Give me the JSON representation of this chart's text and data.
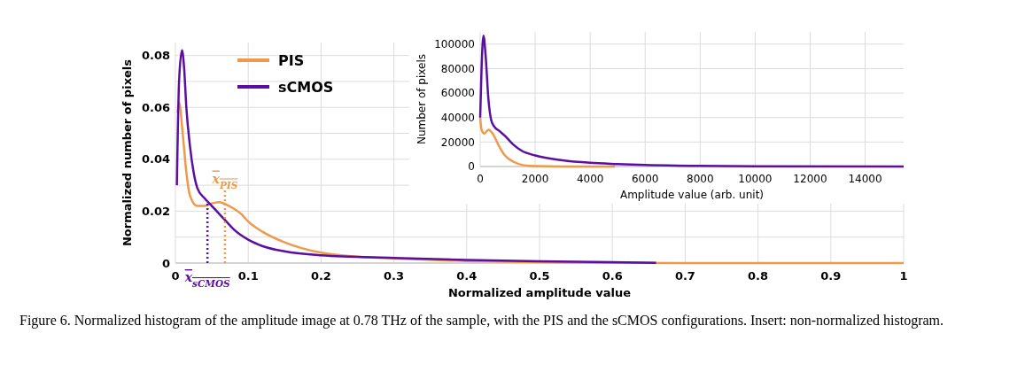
{
  "chart_data": [
    {
      "type": "line",
      "xlabel": "Normalized amplitude value",
      "ylabel": "Normalized number of pixels",
      "xlim": [
        0,
        1
      ],
      "ylim": [
        0,
        0.085
      ],
      "xticks": [
        0,
        0.1,
        0.2,
        0.3,
        0.4,
        0.5,
        0.6,
        0.7,
        0.8,
        0.9,
        1
      ],
      "yticks": [
        0,
        {
          "value": 0.01,
          "label": null
        },
        0.02,
        {
          "value": 0.03,
          "label": null
        },
        0.04,
        {
          "value": 0.05,
          "label": null
        },
        0.06,
        {
          "value": 0.07,
          "label": null
        },
        0.08
      ],
      "grid": true,
      "legend": "top left",
      "marker": "none",
      "line_style": "solid",
      "series": [
        {
          "name": "PIS",
          "color": "#f0994a",
          "x": [
            0.003,
            0.005,
            0.01,
            0.015,
            0.02,
            0.03,
            0.04,
            0.05,
            0.06,
            0.07,
            0.08,
            0.09,
            0.1,
            0.12,
            0.15,
            0.2,
            0.25,
            0.3,
            0.4,
            0.5,
            0.6,
            0.7,
            1.0
          ],
          "values": [
            0.058,
            0.062,
            0.05,
            0.035,
            0.026,
            0.022,
            0.022,
            0.023,
            0.0235,
            0.0225,
            0.021,
            0.019,
            0.016,
            0.012,
            0.008,
            0.004,
            0.0025,
            0.0018,
            0.0008,
            0.0003,
            0.0001,
            0,
            0
          ]
        },
        {
          "name": "sCMOS",
          "color": "#5b0fa0",
          "x": [
            0.002,
            0.005,
            0.009,
            0.012,
            0.015,
            0.02,
            0.025,
            0.03,
            0.04,
            0.05,
            0.06,
            0.07,
            0.08,
            0.1,
            0.12,
            0.15,
            0.2,
            0.3,
            0.4,
            0.5,
            0.6,
            0.66
          ],
          "values": [
            0.03,
            0.07,
            0.082,
            0.075,
            0.06,
            0.045,
            0.035,
            0.029,
            0.025,
            0.022,
            0.019,
            0.016,
            0.013,
            0.009,
            0.0065,
            0.0045,
            0.003,
            0.002,
            0.0012,
            0.0007,
            0.0003,
            0.0001
          ]
        }
      ],
      "ref_lines": [
        {
          "axis": "x",
          "value": 0.068,
          "label": "x$_{PIS}$",
          "color": "#f0994a",
          "line_style": "dotted"
        },
        {
          "axis": "x",
          "value": 0.044,
          "label": "x$_{sCMOS}$",
          "color": "#5b0fa0",
          "line_style": "dotted"
        }
      ],
      "annotations": [
        "Figure 6. Normalized histogram of the amplitude image at 0.78 THz of the sample, with the PIS and the sCMOS configurations. Insert: non-normalized histogram."
      ]
    },
    {
      "type": "line",
      "xlabel": "Amplitude value (arb. unit)",
      "ylabel": "Number of pixels",
      "xlim": [
        0,
        15400
      ],
      "ylim": [
        0,
        110000
      ],
      "xticks": [
        0,
        2000,
        4000,
        6000,
        8000,
        10000,
        12000,
        14000
      ],
      "yticks": [
        0,
        20000,
        40000,
        60000,
        80000,
        100000
      ],
      "grid": true,
      "marker": "none",
      "line_style": "solid",
      "series": [
        {
          "color": "#f0994a",
          "x": [
            0,
            50,
            150,
            300,
            450,
            700,
            900,
            1200,
            1600,
            2000,
            3000,
            4900
          ],
          "values": [
            40000,
            30000,
            27000,
            30000,
            27000,
            16000,
            9000,
            4000,
            1000,
            300,
            0,
            0
          ]
        },
        {
          "color": "#5b0fa0",
          "x": [
            0,
            50,
            120,
            200,
            300,
            400,
            500,
            700,
            900,
            1200,
            1500,
            2000,
            3000,
            4000,
            5000,
            6000,
            8000,
            10000,
            15400
          ],
          "values": [
            40000,
            80000,
            107000,
            90000,
            55000,
            38000,
            33000,
            29000,
            25000,
            18000,
            13000,
            9000,
            5000,
            3000,
            2000,
            1200,
            500,
            200,
            0
          ]
        }
      ]
    }
  ]
}
